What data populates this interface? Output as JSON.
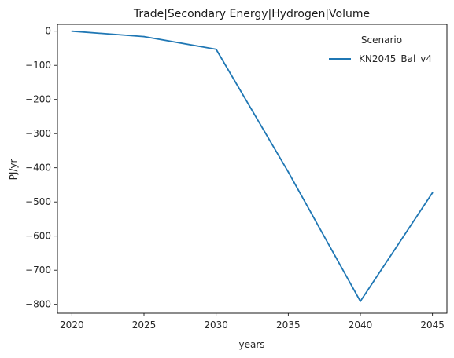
{
  "chart_data": {
    "type": "line",
    "title": "Trade|Secondary Energy|Hydrogen|Volume",
    "xlabel": "years",
    "ylabel": "PJ/yr",
    "x": [
      2020,
      2025,
      2030,
      2035,
      2040,
      2045
    ],
    "xticks": [
      2020,
      2025,
      2030,
      2035,
      2040,
      2045
    ],
    "yticks": [
      0,
      -100,
      -200,
      -300,
      -400,
      -500,
      -600,
      -700,
      -800
    ],
    "xlim": [
      2019,
      2046
    ],
    "ylim": [
      -826,
      20
    ],
    "grid": false,
    "legend": {
      "title": "Scenario",
      "position": "top-right"
    },
    "series": [
      {
        "name": "KN2045_Bal_v4",
        "color": "#1f77b4",
        "values": [
          0,
          -16,
          -53,
          -412,
          -791,
          -473
        ]
      }
    ]
  }
}
